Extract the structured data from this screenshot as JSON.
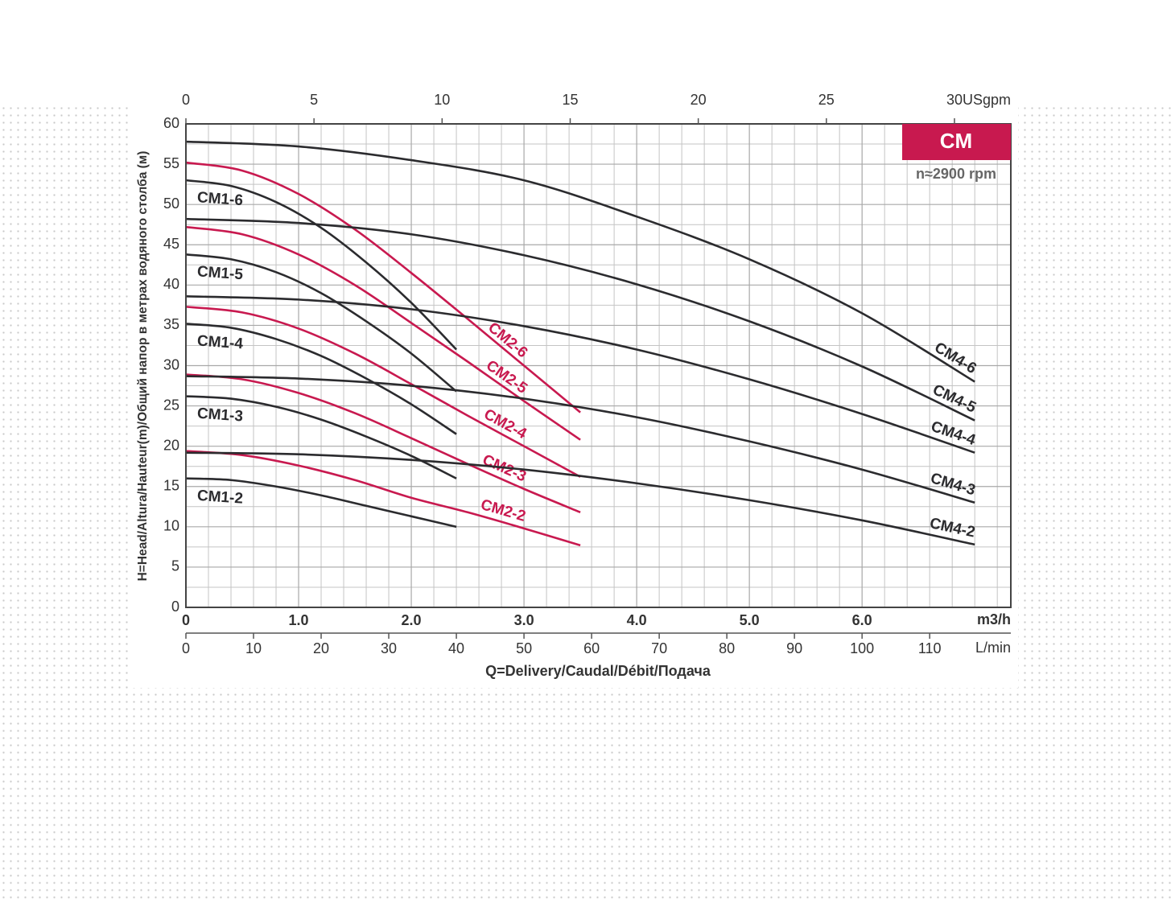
{
  "chart_data": {
    "type": "line",
    "badge": "CM",
    "subtitle": "n≈2900 rpm",
    "y_label": "H=Head/Altura/Hauteur(m)/Общий напор в метрах водяного столба (м)",
    "x_label": "Q=Delivery/Caudal/Débit/Подача",
    "x_unit": "m3/h",
    "xlim": [
      0,
      7.32
    ],
    "xticks": [
      0,
      {
        "value": 1,
        "label": "1.0"
      },
      {
        "value": 2,
        "label": "2.0"
      },
      {
        "value": 3,
        "label": "3.0"
      },
      {
        "value": 4,
        "label": "4.0"
      },
      {
        "value": 5,
        "label": "5.0"
      },
      {
        "value": 6,
        "label": "6.0"
      }
    ],
    "ylim": [
      0,
      60
    ],
    "yticks": [
      0,
      5,
      10,
      15,
      20,
      25,
      30,
      35,
      40,
      45,
      50,
      55,
      60
    ],
    "grid": true,
    "xgrid": [
      0.2,
      0.4,
      0.6,
      0.8,
      1.2,
      1.4,
      1.6,
      1.8,
      2.2,
      2.4,
      2.6,
      2.8,
      3.2,
      3.4,
      3.6,
      3.8,
      4.2,
      4.4,
      4.6,
      4.8,
      5.2,
      5.4,
      5.6,
      5.8,
      6.2,
      6.4,
      6.6,
      6.8,
      7.0,
      7.2
    ],
    "ygrid": [
      2.5,
      7.5,
      12.5,
      17.5,
      22.5,
      27.5,
      32.5,
      37.5,
      42.5,
      47.5,
      52.5,
      57.5
    ],
    "top_axis": {
      "unit": "USgpm",
      "lim": [
        0,
        32.2
      ],
      "ticks": [
        0,
        5,
        10,
        15,
        20,
        25,
        30
      ]
    },
    "bottom_axis": {
      "unit": "L/min",
      "lim": [
        0,
        122
      ],
      "ticks": [
        0,
        10,
        20,
        30,
        40,
        50,
        60,
        70,
        80,
        90,
        100,
        110
      ]
    },
    "series": [
      {
        "name": "CM1-2",
        "color": "#2b2b2e",
        "x": [
          0,
          0.4,
          0.8,
          1.2,
          1.6,
          2.0,
          2.4
        ],
        "values": [
          16,
          15.8,
          15,
          13.9,
          12.6,
          11.3,
          10
        ]
      },
      {
        "name": "CM1-3",
        "color": "#2b2b2e",
        "x": [
          0,
          0.4,
          0.8,
          1.2,
          1.6,
          2.0,
          2.4
        ],
        "values": [
          26.2,
          25.9,
          24.9,
          23.3,
          21.2,
          18.8,
          16
        ]
      },
      {
        "name": "CM1-4",
        "color": "#2b2b2e",
        "x": [
          0,
          0.4,
          0.8,
          1.2,
          1.6,
          2.0,
          2.4
        ],
        "values": [
          35.2,
          34.7,
          33.3,
          31.2,
          28.4,
          25.2,
          21.5
        ]
      },
      {
        "name": "CM1-5",
        "color": "#2b2b2e",
        "x": [
          0,
          0.4,
          0.8,
          1.2,
          1.6,
          2.0,
          2.4
        ],
        "values": [
          43.8,
          43.2,
          41.6,
          39,
          35.5,
          31.5,
          26.8
        ]
      },
      {
        "name": "CM1-6",
        "color": "#2b2b2e",
        "x": [
          0,
          0.4,
          0.8,
          1.2,
          1.6,
          2.0,
          2.4
        ],
        "values": [
          53,
          52.3,
          50.3,
          47.1,
          42.8,
          37.8,
          32
        ]
      },
      {
        "name": "CM2-2",
        "color": "#c8194f",
        "x": [
          0,
          0.5,
          1.0,
          1.5,
          2.0,
          2.5,
          3.0,
          3.5
        ],
        "values": [
          19.4,
          18.9,
          17.6,
          15.8,
          13.6,
          11.8,
          9.8,
          7.7
        ]
      },
      {
        "name": "CM2-3",
        "color": "#c8194f",
        "x": [
          0,
          0.5,
          1.0,
          1.5,
          2.0,
          2.5,
          3.0,
          3.5
        ],
        "values": [
          28.9,
          28.3,
          26.6,
          24.1,
          21,
          17.8,
          14.7,
          11.8
        ]
      },
      {
        "name": "CM2-4",
        "color": "#c8194f",
        "x": [
          0,
          0.5,
          1.0,
          1.5,
          2.0,
          2.5,
          3.0,
          3.5
        ],
        "values": [
          37.3,
          36.6,
          34.6,
          31.5,
          27.7,
          23.8,
          20,
          16.2
        ]
      },
      {
        "name": "CM2-5",
        "color": "#c8194f",
        "x": [
          0,
          0.5,
          1.0,
          1.5,
          2.0,
          2.5,
          3.0,
          3.5
        ],
        "values": [
          47.2,
          46.3,
          43.8,
          40,
          35.3,
          30.5,
          25.6,
          20.8
        ]
      },
      {
        "name": "CM2-6",
        "color": "#c8194f",
        "x": [
          0,
          0.5,
          1.0,
          1.5,
          2.0,
          2.5,
          3.0,
          3.5
        ],
        "values": [
          55.2,
          54.2,
          51.3,
          46.9,
          41.5,
          35.8,
          30,
          24.2
        ]
      },
      {
        "name": "CM4-2",
        "color": "#2b2b2e",
        "x": [
          0,
          1,
          2,
          3,
          4,
          5,
          6,
          7
        ],
        "values": [
          19.2,
          19,
          18.3,
          17.1,
          15.4,
          13.3,
          10.8,
          7.8
        ]
      },
      {
        "name": "CM4-3",
        "color": "#2b2b2e",
        "x": [
          0,
          1,
          2,
          3,
          4,
          5,
          6,
          7
        ],
        "values": [
          28.7,
          28.4,
          27.5,
          25.9,
          23.6,
          20.6,
          17.1,
          13
        ]
      },
      {
        "name": "CM4-4",
        "color": "#2b2b2e",
        "x": [
          0,
          1,
          2,
          3,
          4,
          5,
          6,
          7
        ],
        "values": [
          38.6,
          38.2,
          37,
          34.9,
          32,
          28.3,
          24,
          19.2
        ]
      },
      {
        "name": "CM4-5",
        "color": "#2b2b2e",
        "x": [
          0,
          1,
          2,
          3,
          4,
          5,
          6,
          7
        ],
        "values": [
          48.2,
          47.7,
          46.3,
          43.7,
          40.1,
          35.5,
          29.9,
          23.2
        ]
      },
      {
        "name": "CM4-6",
        "color": "#2b2b2e",
        "x": [
          0,
          1,
          2,
          3,
          4,
          5,
          6,
          7
        ],
        "values": [
          57.8,
          57.2,
          55.5,
          53,
          48.5,
          43.2,
          36.5,
          28
        ]
      }
    ]
  }
}
